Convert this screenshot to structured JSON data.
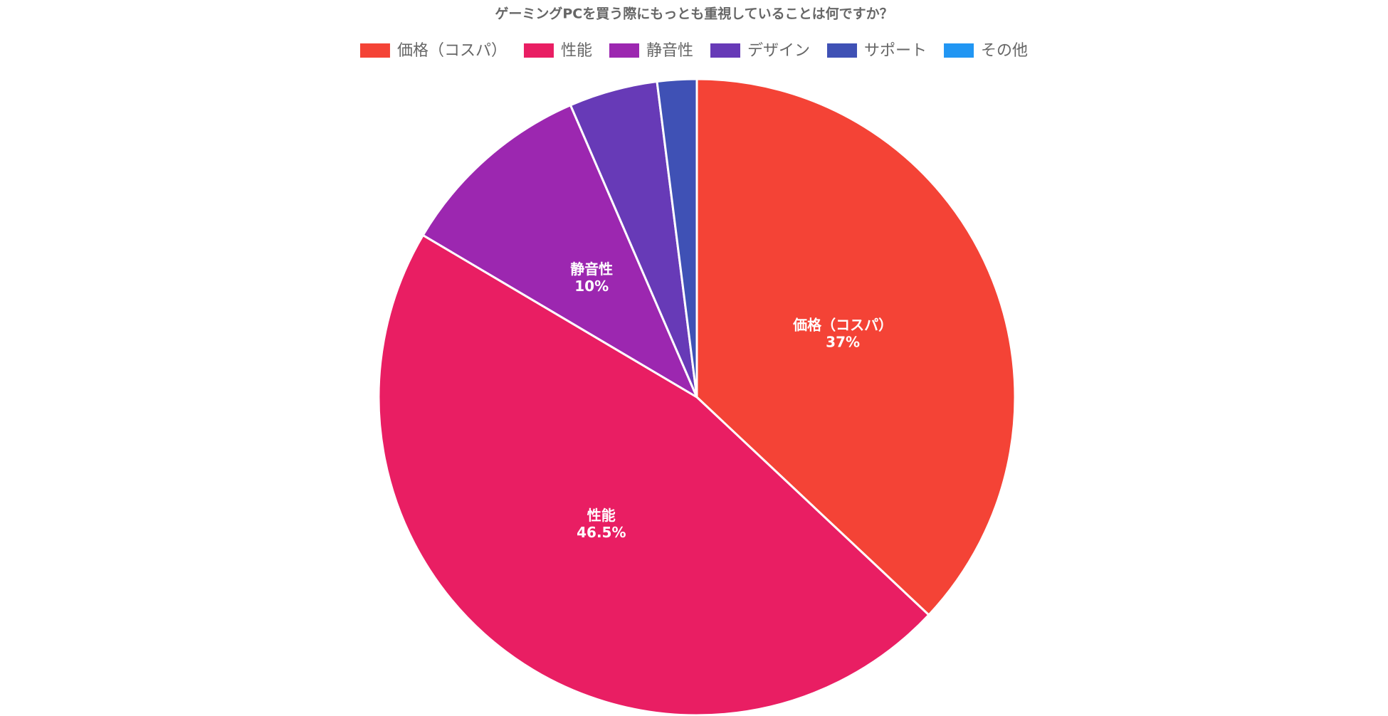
{
  "chart_data": {
    "type": "pie",
    "title": "ゲーミングPCを買う際にもっとも重視していることは何ですか？",
    "categories": [
      "価格（コスパ）",
      "性能",
      "静音性",
      "デザイン",
      "サポート",
      "その他"
    ],
    "values": [
      37,
      46.5,
      10,
      4.5,
      2,
      0
    ],
    "value_labels": [
      "37%",
      "46.5%",
      "10%",
      null,
      null,
      null
    ],
    "colors": [
      "#f44336",
      "#e91e63",
      "#9c27b0",
      "#673ab7",
      "#3f51b5",
      "#2196f3"
    ],
    "legend": "top"
  }
}
